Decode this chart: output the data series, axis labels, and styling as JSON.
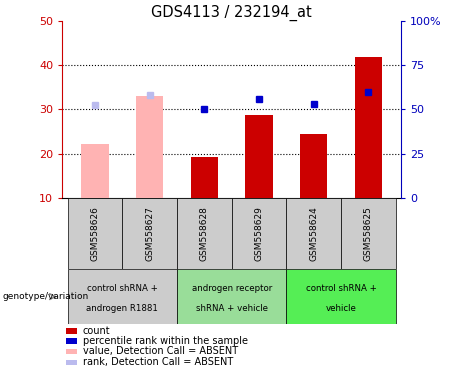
{
  "title": "GDS4113 / 232194_at",
  "samples": [
    "GSM558626",
    "GSM558627",
    "GSM558628",
    "GSM558629",
    "GSM558624",
    "GSM558625"
  ],
  "bar_values": [
    22.2,
    33.0,
    19.3,
    28.7,
    24.5,
    41.8
  ],
  "bar_colors": [
    "#ffb3b3",
    "#ffb3b3",
    "#cc0000",
    "#cc0000",
    "#cc0000",
    "#cc0000"
  ],
  "dot_values_left": [
    31.0,
    33.2,
    30.2,
    32.3,
    31.2,
    34.0
  ],
  "dot_colors": [
    "#bbbbee",
    "#bbbbee",
    "#0000cc",
    "#0000cc",
    "#0000cc",
    "#0000cc"
  ],
  "ylim_left": [
    10,
    50
  ],
  "ylim_right": [
    0,
    100
  ],
  "yticks_left": [
    10,
    20,
    30,
    40,
    50
  ],
  "yticks_right": [
    0,
    25,
    50,
    75,
    100
  ],
  "ytick_labels_right": [
    "0",
    "25",
    "50",
    "75",
    "100%"
  ],
  "group_configs": [
    {
      "start": 0,
      "end": 1,
      "color": "#cccccc",
      "label1": "control shRNA +",
      "label2": "androgen R1881"
    },
    {
      "start": 2,
      "end": 3,
      "color": "#99dd99",
      "label1": "androgen receptor",
      "label2": "shRNA + vehicle"
    },
    {
      "start": 4,
      "end": 5,
      "color": "#55ee55",
      "label1": "control shRNA +",
      "label2": "vehicle"
    }
  ],
  "legend_items": [
    {
      "color": "#cc0000",
      "label": "count"
    },
    {
      "color": "#0000cc",
      "label": "percentile rank within the sample"
    },
    {
      "color": "#ffb3b3",
      "label": "value, Detection Call = ABSENT"
    },
    {
      "color": "#bbbbee",
      "label": "rank, Detection Call = ABSENT"
    }
  ],
  "bar_width": 0.5,
  "ylabel_left_color": "#cc0000",
  "ylabel_right_color": "#0000bb"
}
